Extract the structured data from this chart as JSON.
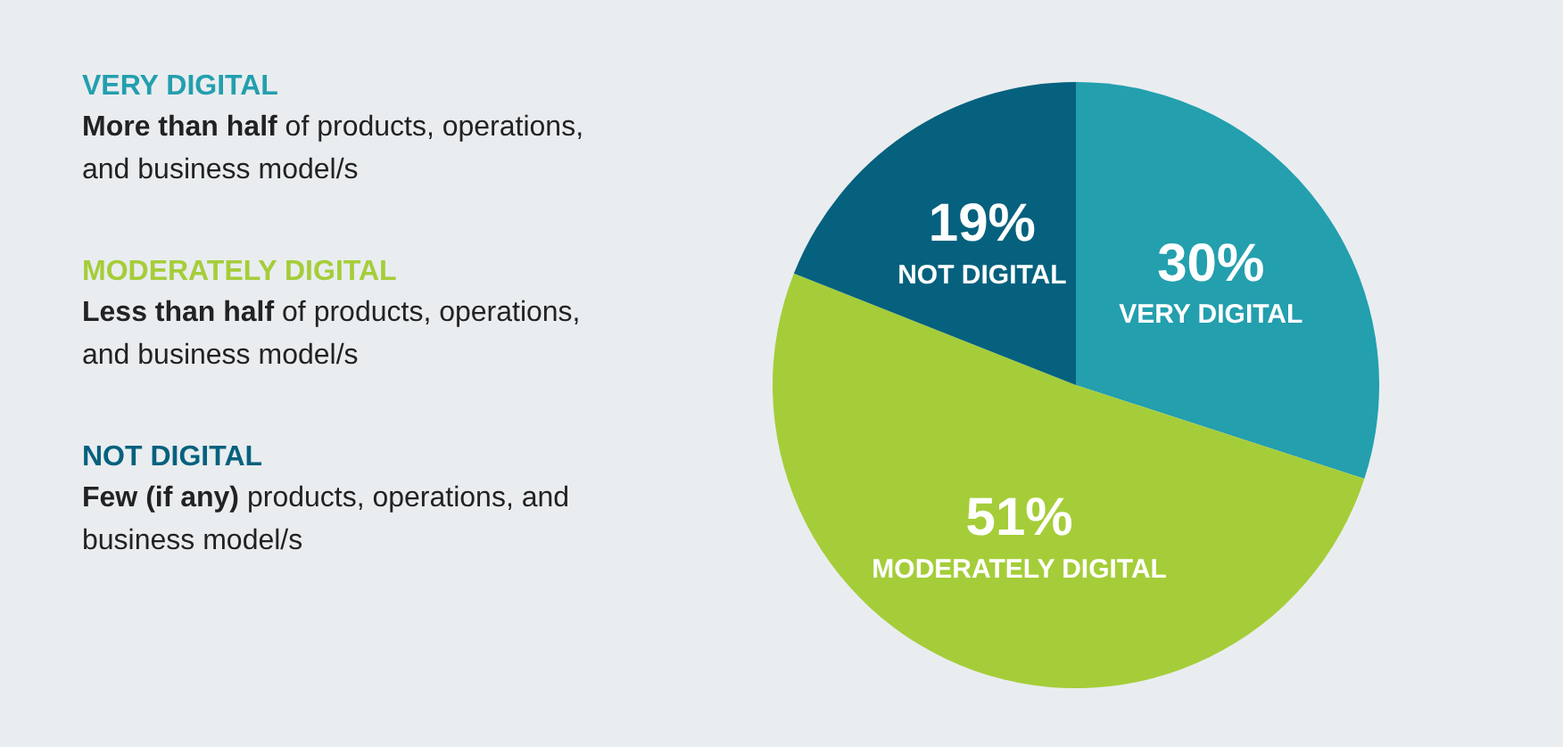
{
  "chart_data": {
    "type": "pie",
    "categories": [
      "VERY DIGITAL",
      "MODERATELY DIGITAL",
      "NOT DIGITAL"
    ],
    "values": [
      30,
      51,
      19
    ],
    "colors": [
      "#239fae",
      "#a5cd39",
      "#05617e"
    ],
    "value_labels": [
      "30%",
      "51%",
      "19%"
    ],
    "annotations": [
      "More than half",
      "of products, operations, and business model/s",
      "Less than half",
      "of products, operations, and business model/s",
      "Few (if any)",
      "products, operations, and business model/s"
    ]
  }
}
